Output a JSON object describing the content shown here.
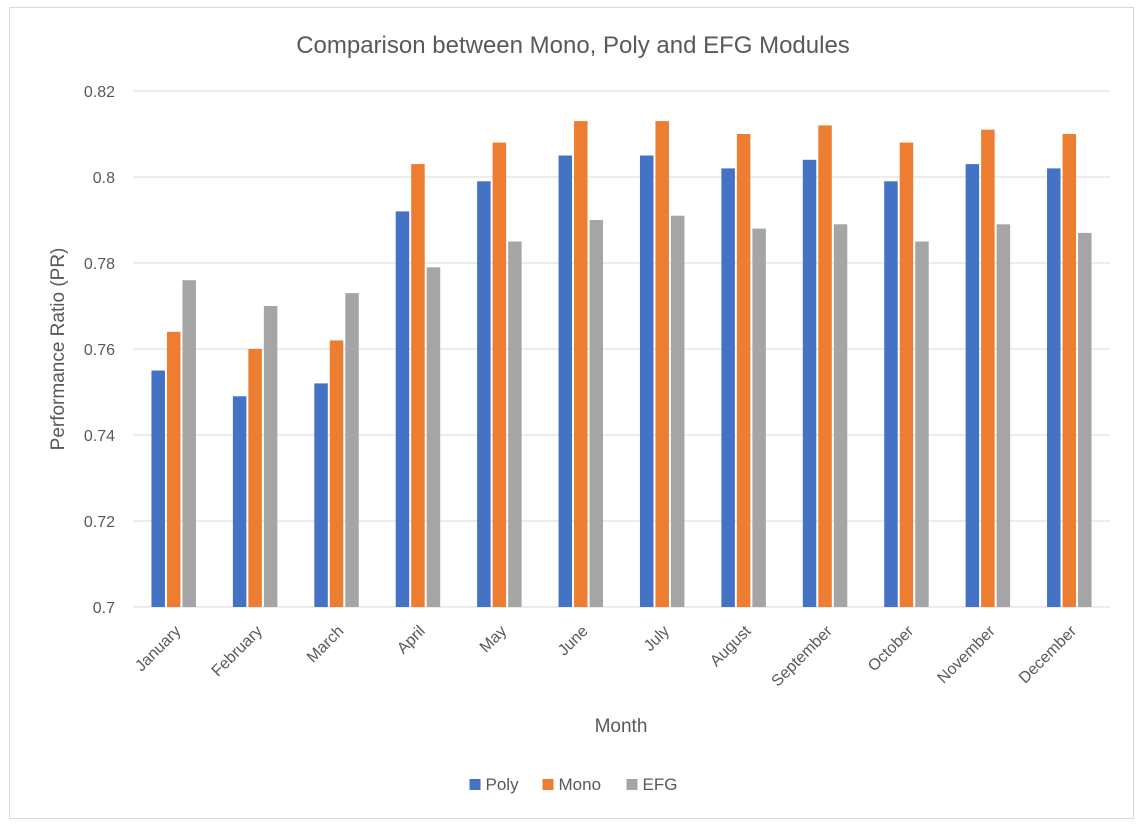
{
  "chart_data": {
    "type": "bar",
    "title": "Comparison between Mono, Poly and EFG Modules",
    "xlabel": "Month",
    "ylabel": "Performance Ratio (PR)",
    "ylim": [
      0.7,
      0.82
    ],
    "yticks": [
      0.7,
      0.72,
      0.74,
      0.76,
      0.78,
      0.8,
      0.82
    ],
    "ytick_labels": [
      "0.7",
      "0.72",
      "0.74",
      "0.76",
      "0.78",
      "0.8",
      "0.82"
    ],
    "grid": true,
    "legend_position": "bottom",
    "categories": [
      "January",
      "February",
      "March",
      "April",
      "May",
      "June",
      "July",
      "August",
      "September",
      "October",
      "November",
      "December"
    ],
    "series": [
      {
        "name": "Poly",
        "color": "#4472c4",
        "values": [
          0.755,
          0.749,
          0.752,
          0.792,
          0.799,
          0.805,
          0.805,
          0.802,
          0.804,
          0.799,
          0.803,
          0.802
        ]
      },
      {
        "name": "Mono",
        "color": "#ed7d31",
        "values": [
          0.764,
          0.76,
          0.762,
          0.803,
          0.808,
          0.813,
          0.813,
          0.81,
          0.812,
          0.808,
          0.811,
          0.81
        ]
      },
      {
        "name": "EFG",
        "color": "#a5a5a5",
        "values": [
          0.776,
          0.77,
          0.773,
          0.779,
          0.785,
          0.79,
          0.791,
          0.788,
          0.789,
          0.785,
          0.789,
          0.787
        ]
      }
    ]
  }
}
